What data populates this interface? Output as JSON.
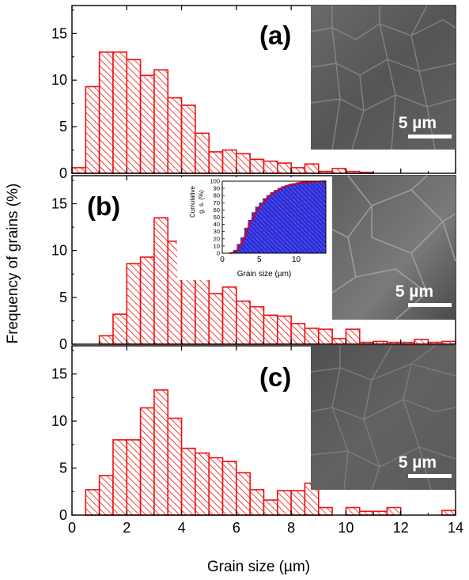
{
  "colors": {
    "bar_stroke": "#ee1111",
    "hatch": "#ee1111",
    "inset_fill": "#2d2dd9",
    "inset_hatch": "#8888ee",
    "inset_curve": "#dd0000",
    "axis": "#000000"
  },
  "chart_data": [
    {
      "type": "bar",
      "panel": "(a)",
      "x_range": [
        0,
        14
      ],
      "y_range": [
        0,
        18
      ],
      "bin_width": 0.5,
      "bins_start": [
        0,
        0.5,
        1,
        1.5,
        2,
        2.5,
        3,
        3.5,
        4,
        4.5,
        5,
        5.5,
        6,
        6.5,
        7,
        7.5,
        8,
        8.5,
        9,
        9.5,
        10,
        10.5
      ],
      "values": [
        0.6,
        9.3,
        13.0,
        13.0,
        12.2,
        10.5,
        11.1,
        8.1,
        7.3,
        4.3,
        2.3,
        2.5,
        2.1,
        1.5,
        1.3,
        1.1,
        0.6,
        1.0,
        0.2,
        0.5,
        0.2,
        0.1
      ],
      "scale_bar": "5 µm"
    },
    {
      "type": "bar",
      "panel": "(b)",
      "x_range": [
        0,
        14
      ],
      "y_range": [
        0,
        18
      ],
      "bin_width": 0.5,
      "bins_start": [
        1,
        1.5,
        2,
        2.5,
        3,
        3.5,
        4,
        4.5,
        5,
        5.5,
        6,
        6.5,
        7,
        7.5,
        8,
        8.5,
        9,
        9.5,
        10,
        10.5,
        11,
        11.5,
        12,
        12.5,
        13,
        13.5
      ],
      "values": [
        0.9,
        3.2,
        8.6,
        9.3,
        13.5,
        11.0,
        10.7,
        8.1,
        5.4,
        6.1,
        4.6,
        4.0,
        3.1,
        3.0,
        2.2,
        1.7,
        1.6,
        0.6,
        1.6,
        0.2,
        0.3,
        0.2,
        0.2,
        0.5,
        0.2,
        0.3
      ],
      "scale_bar": "5 µm",
      "inset": {
        "type": "bar",
        "x_range": [
          0,
          14
        ],
        "y_range": [
          0,
          100
        ],
        "xlabel": "Grain size (µm)",
        "ylabel_line1": "Cumulative",
        "ylabel_line2": "g. s. (%)",
        "x_ticks": [
          0,
          5,
          10
        ],
        "y_ticks": [
          0,
          10,
          20,
          30,
          40,
          50,
          60,
          70,
          80,
          90,
          100
        ]
      }
    },
    {
      "type": "bar",
      "panel": "(c)",
      "x_range": [
        0,
        14
      ],
      "y_range": [
        0,
        18
      ],
      "bin_width": 0.5,
      "bins_start": [
        0.5,
        1,
        1.5,
        2,
        2.5,
        3,
        3.5,
        4,
        4.5,
        5,
        5.5,
        6,
        6.5,
        7,
        7.5,
        8,
        8.5,
        9,
        9.5,
        10,
        10.5,
        11,
        11.5,
        12,
        12.5,
        13,
        13.5
      ],
      "values": [
        2.7,
        4.2,
        8.0,
        8.0,
        11.4,
        13.3,
        10.3,
        7.1,
        6.6,
        6.1,
        5.7,
        4.5,
        2.7,
        1.6,
        2.6,
        2.6,
        3.4,
        0.8,
        0,
        0.8,
        0.4,
        0.4,
        0.8,
        0,
        0,
        0,
        0.5
      ],
      "scale_bar": "5 µm"
    }
  ],
  "axes": {
    "xlabel": "Grain size (µm)",
    "ylabel": "Frequency of grains (%)",
    "x_ticks": [
      0,
      2,
      4,
      6,
      8,
      10,
      12,
      14
    ],
    "y_ticks": [
      0,
      5,
      10,
      15
    ]
  }
}
